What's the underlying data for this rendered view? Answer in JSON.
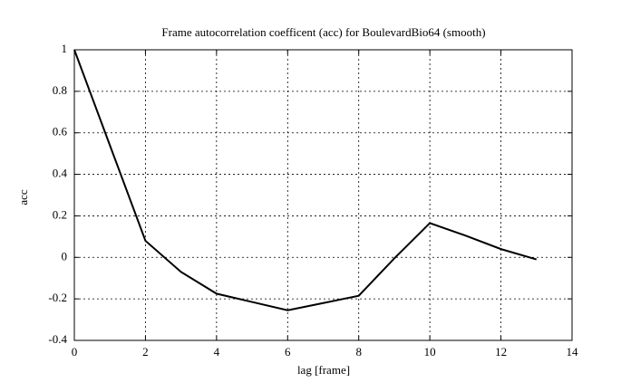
{
  "chart_data": {
    "type": "line",
    "title": "Frame autocorrelation coefficent (acc) for BoulevardBio64 (smooth)",
    "xlabel": "lag [frame]",
    "ylabel": "acc",
    "x": [
      0,
      1,
      2,
      3,
      4,
      5,
      6,
      7,
      8,
      9,
      10,
      11,
      12,
      13
    ],
    "series": [
      {
        "name": "acc",
        "color": "#000000",
        "values": [
          1,
          0.54,
          0.08,
          -0.07,
          -0.175,
          -0.215,
          -0.255,
          -0.22,
          -0.185,
          -0.005,
          0.165,
          0.105,
          0.04,
          -0.01
        ]
      }
    ],
    "xlim": [
      0,
      14
    ],
    "ylim": [
      -0.4,
      1
    ],
    "xticks": [
      0,
      2,
      4,
      6,
      8,
      10,
      12,
      14
    ],
    "yticks": [
      -0.4,
      -0.2,
      0,
      0.2,
      0.4,
      0.6,
      0.8,
      1
    ],
    "grid": true
  }
}
